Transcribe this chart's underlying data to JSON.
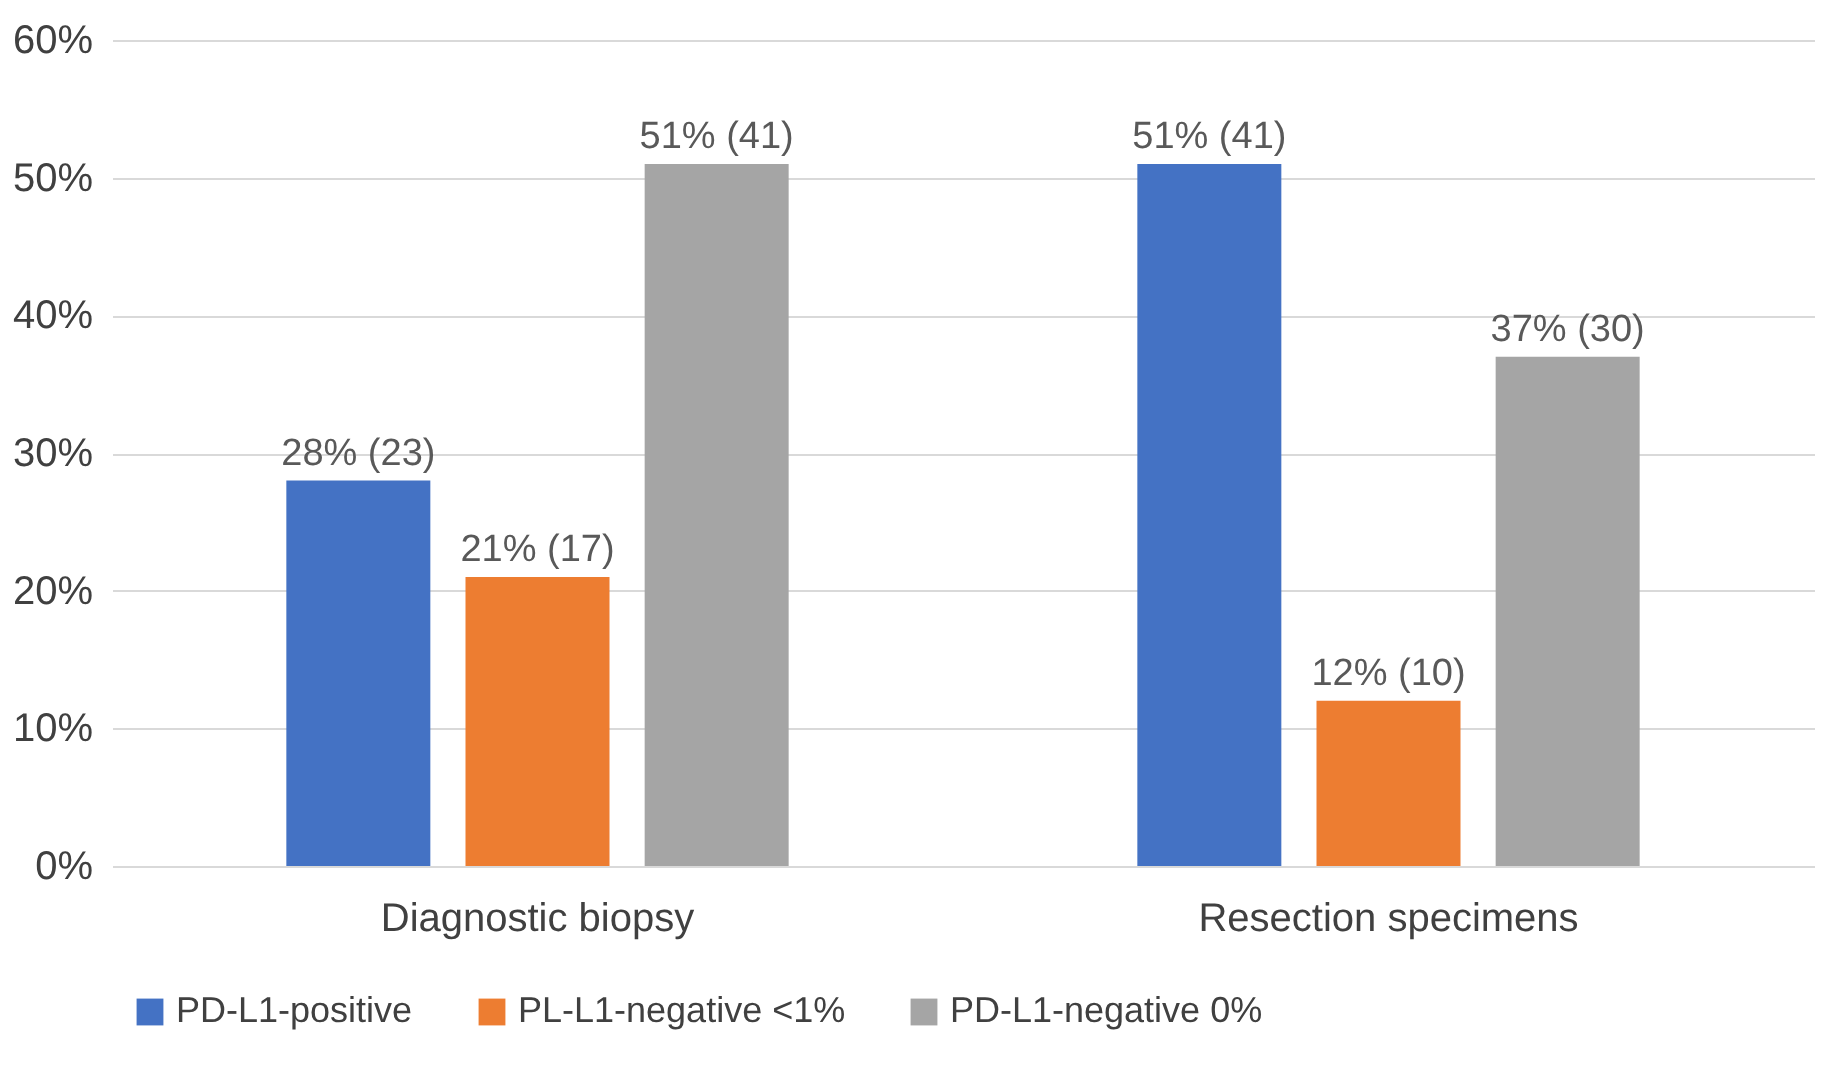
{
  "chart_data": {
    "type": "bar",
    "categories": [
      "Diagnostic biopsy",
      "Resection specimens"
    ],
    "series": [
      {
        "name": "PD-L1-positive",
        "color": "#4472c4",
        "values": [
          28,
          51
        ],
        "value_labels": [
          "28% (23)",
          "51% (41)"
        ]
      },
      {
        "name": "PL-L1-negative <1%",
        "color": "#ed7d31",
        "values": [
          21,
          12
        ],
        "value_labels": [
          "21% (17)",
          "12% (10)"
        ]
      },
      {
        "name": "PD-L1-negative 0%",
        "color": "#a5a5a5",
        "values": [
          51,
          37
        ],
        "value_labels": [
          "51% (41)",
          "37% (30)"
        ]
      }
    ],
    "ylim": [
      0,
      60
    ],
    "yticks": [
      {
        "value": 0,
        "label": "0%"
      },
      {
        "value": 10,
        "label": "10%"
      },
      {
        "value": 20,
        "label": "20%"
      },
      {
        "value": 30,
        "label": "30%"
      },
      {
        "value": 40,
        "label": "40%"
      },
      {
        "value": 50,
        "label": "50%"
      },
      {
        "value": 60,
        "label": "60%"
      }
    ],
    "grid": "y",
    "legend": "bottom"
  }
}
